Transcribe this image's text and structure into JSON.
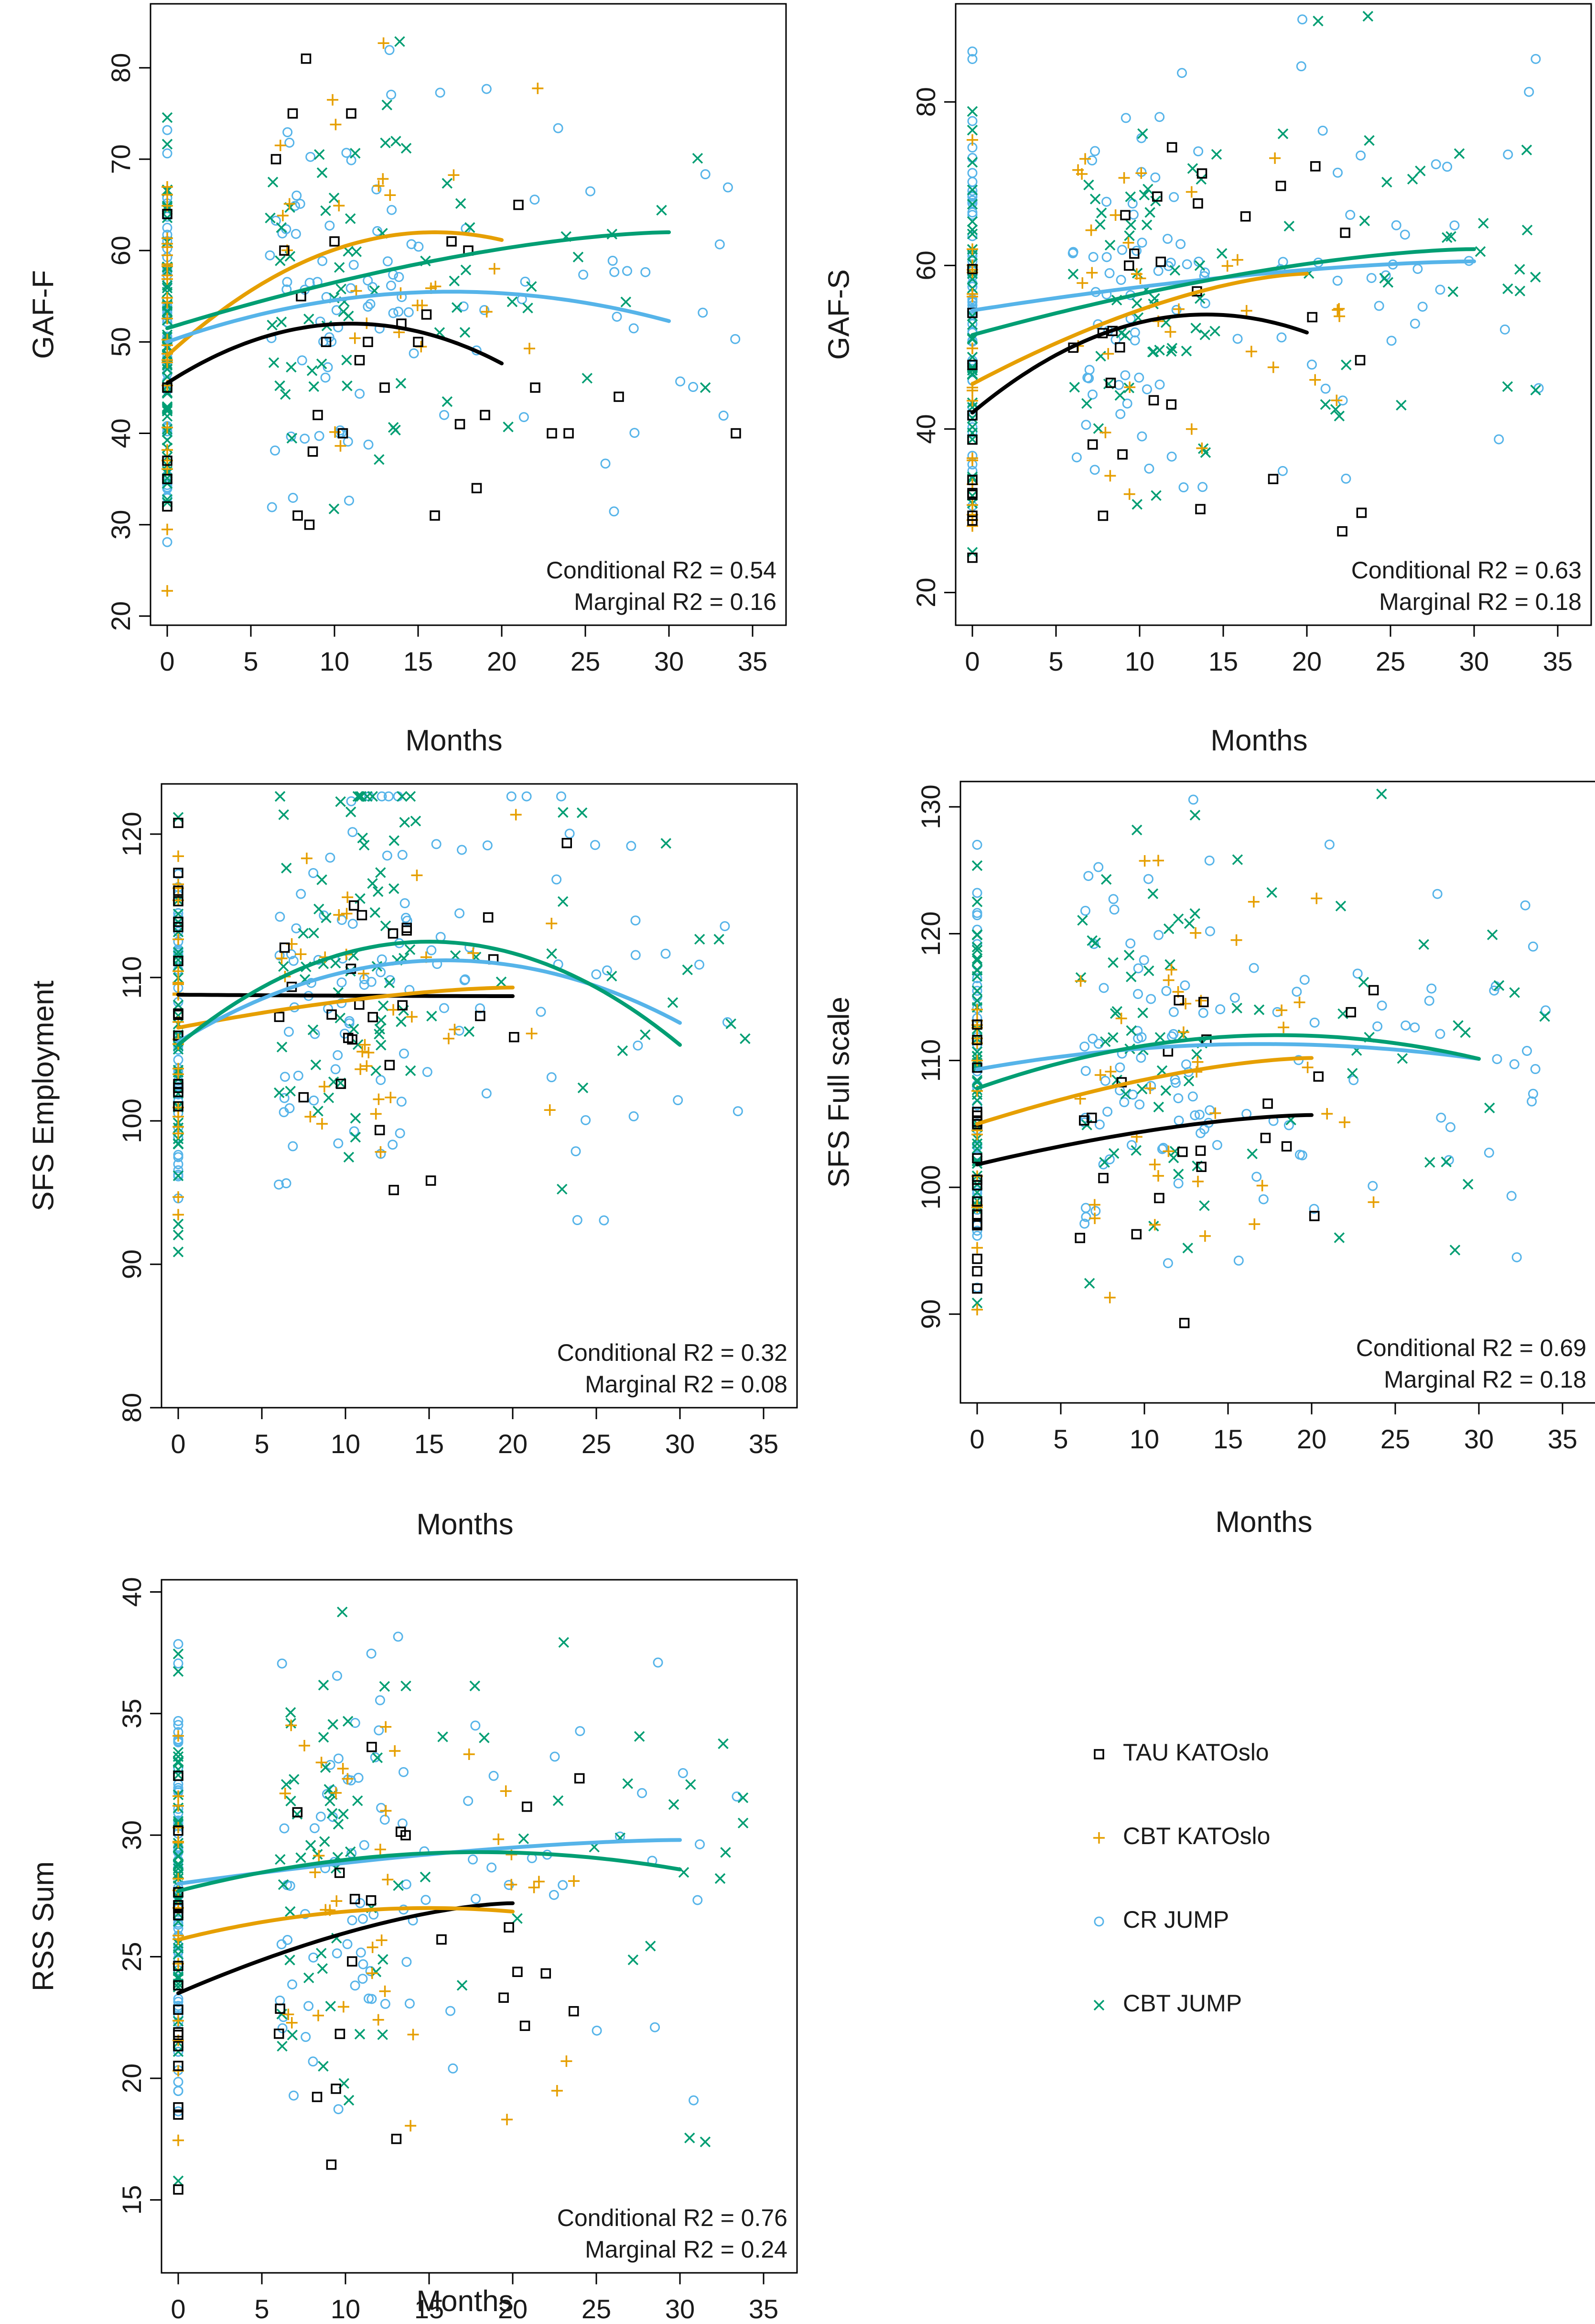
{
  "figure": {
    "legend": [
      {
        "label": "TAU KATOslo",
        "color": "#000000",
        "symbol": "square"
      },
      {
        "label": "CBT KATOslo",
        "color": "#E69F00",
        "symbol": "plus"
      },
      {
        "label": "CR JUMP",
        "color": "#56B4E9",
        "symbol": "circle"
      },
      {
        "label": "CBT JUMP",
        "color": "#009E73",
        "symbol": "cross"
      }
    ]
  },
  "chart_data": [
    {
      "type": "scatter",
      "title": "",
      "xlabel": "Months",
      "ylabel": "GAF-F",
      "xlim": [
        -1,
        37
      ],
      "ylim": [
        19,
        87
      ],
      "xticks": [
        0,
        5,
        10,
        15,
        20,
        25,
        30,
        35
      ],
      "yticks": [
        20,
        30,
        40,
        50,
        60,
        70,
        80
      ],
      "grid": false,
      "annotations": [
        "Conditional R2 = 0.54",
        "Marginal R2 = 0.16"
      ],
      "series": [
        {
          "name": "TAU KATOslo",
          "curve": {
            "x": [
              0,
              20
            ],
            "y0": 45.5,
            "x_peak": 11,
            "y_peak": 52,
            "y_end": 47.5
          },
          "points": [
            [
              0,
              45
            ],
            [
              0,
              64
            ],
            [
              0,
              35
            ],
            [
              0,
              37
            ],
            [
              0,
              32
            ],
            [
              6.5,
              70
            ],
            [
              7,
              60
            ],
            [
              7.5,
              75
            ],
            [
              8,
              55
            ],
            [
              8.3,
              81
            ],
            [
              8.7,
              38
            ],
            [
              9,
              42
            ],
            [
              9.5,
              50
            ],
            [
              10,
              61
            ],
            [
              11,
              75
            ],
            [
              11.5,
              48
            ],
            [
              12,
              50
            ],
            [
              13,
              45
            ],
            [
              14,
              52
            ],
            [
              15,
              50
            ],
            [
              16,
              31
            ],
            [
              17,
              61
            ],
            [
              17.5,
              41
            ],
            [
              18,
              60
            ],
            [
              18.5,
              34
            ],
            [
              19,
              42
            ],
            [
              21,
              65
            ],
            [
              22,
              45
            ],
            [
              23,
              40
            ],
            [
              24,
              40
            ],
            [
              27,
              44
            ],
            [
              34,
              40
            ],
            [
              7.8,
              31
            ],
            [
              8.5,
              30
            ],
            [
              10.5,
              40
            ],
            [
              15.5,
              53
            ]
          ]
        },
        {
          "name": "CBT KATOslo",
          "curve": {
            "x": [
              0,
              20
            ],
            "y0": 48.5,
            "x_peak": 16,
            "y_peak": 62,
            "y_end": 61
          },
          "points": []
        },
        {
          "name": "CR JUMP",
          "curve": {
            "x": [
              0,
              30
            ],
            "y0": 50,
            "x_peak": 17,
            "y_peak": 55.5,
            "y_end": 54
          },
          "points": []
        },
        {
          "name": "CBT JUMP",
          "curve": {
            "x": [
              0,
              30
            ],
            "y0": 51.5,
            "x_peak": 30,
            "y_peak": 62,
            "y_end": 62
          },
          "points": []
        }
      ]
    },
    {
      "type": "scatter",
      "title": "",
      "xlabel": "Months",
      "ylabel": "GAF-S",
      "xlim": [
        -1,
        37
      ],
      "ylim": [
        16,
        92
      ],
      "xticks": [
        0,
        5,
        10,
        15,
        20,
        25,
        30,
        35
      ],
      "yticks": [
        20,
        40,
        60,
        80
      ],
      "grid": false,
      "annotations": [
        "Conditional R2 = 0.63",
        "Marginal R2 = 0.18"
      ],
      "series": [
        {
          "name": "TAU KATOslo",
          "curve": {
            "x": [
              0,
              20
            ],
            "y0": 42,
            "x_peak": 14,
            "y_peak": 54,
            "y_end": 52
          },
          "points": []
        },
        {
          "name": "CBT KATOslo",
          "curve": {
            "x": [
              0,
              20
            ],
            "y0": 45.5,
            "x_peak": 20,
            "y_peak": 59,
            "y_end": 59
          },
          "points": []
        },
        {
          "name": "CR JUMP",
          "curve": {
            "x": [
              0,
              30
            ],
            "y0": 54.5,
            "x_peak": 30,
            "y_peak": 60.5,
            "y_end": 60.5
          },
          "points": []
        },
        {
          "name": "CBT JUMP",
          "curve": {
            "x": [
              0,
              30
            ],
            "y0": 51.5,
            "x_peak": 30,
            "y_peak": 62,
            "y_end": 62
          },
          "points": []
        }
      ]
    },
    {
      "type": "scatter",
      "title": "",
      "xlabel": "Months",
      "ylabel": "SFS Employment",
      "xlim": [
        -1,
        37
      ],
      "ylim": [
        80,
        123.5
      ],
      "xticks": [
        0,
        5,
        10,
        15,
        20,
        25,
        30,
        35
      ],
      "yticks": [
        80,
        90,
        100,
        110,
        120
      ],
      "grid": false,
      "annotations": [
        "Conditional R2 = 0.32",
        "Marginal R2 = 0.08"
      ],
      "series": [
        {
          "name": "TAU KATOslo",
          "curve": {
            "x": [
              0,
              20
            ],
            "y0": 108.8,
            "x_peak": 0,
            "y_peak": 108.8,
            "y_end": 108.7
          },
          "points": []
        },
        {
          "name": "CBT KATOslo",
          "curve": {
            "x": [
              0,
              20
            ],
            "y0": 106.5,
            "x_peak": 20,
            "y_peak": 109.3,
            "y_end": 109.3
          },
          "points": []
        },
        {
          "name": "CR JUMP",
          "curve": {
            "x": [
              0,
              30
            ],
            "y0": 105.5,
            "x_peak": 16,
            "y_peak": 111.2,
            "y_end": 107.5
          },
          "points": []
        },
        {
          "name": "CBT JUMP",
          "curve": {
            "x": [
              0,
              30
            ],
            "y0": 105.3,
            "x_peak": 15,
            "y_peak": 112.5,
            "y_end": 107
          },
          "points": []
        }
      ]
    },
    {
      "type": "scatter",
      "title": "",
      "xlabel": "Months",
      "ylabel": "SFS Full scale",
      "xlim": [
        -1,
        37
      ],
      "ylim": [
        83,
        132
      ],
      "xticks": [
        0,
        5,
        10,
        15,
        20,
        25,
        30,
        35
      ],
      "yticks": [
        90,
        100,
        110,
        120,
        130
      ],
      "grid": false,
      "annotations": [
        "Conditional R2 = 0.69",
        "Marginal R2 = 0.18"
      ],
      "series": [
        {
          "name": "TAU KATOslo",
          "curve": {
            "x": [
              0,
              20
            ],
            "y0": 101.8,
            "x_peak": 20,
            "y_peak": 105.7,
            "y_end": 105.7
          },
          "points": []
        },
        {
          "name": "CBT KATOslo",
          "curve": {
            "x": [
              0,
              20
            ],
            "y0": 105,
            "x_peak": 20,
            "y_peak": 110.2,
            "y_end": 110.2
          },
          "points": []
        },
        {
          "name": "CR JUMP",
          "curve": {
            "x": [
              0,
              30
            ],
            "y0": 109.3,
            "x_peak": 17,
            "y_peak": 111.3,
            "y_end": 110.5
          },
          "points": []
        },
        {
          "name": "CBT JUMP",
          "curve": {
            "x": [
              0,
              30
            ],
            "y0": 107.8,
            "x_peak": 18,
            "y_peak": 112,
            "y_end": 111
          },
          "points": []
        }
      ]
    },
    {
      "type": "scatter",
      "title": "",
      "xlabel": "Months",
      "ylabel": "RSS Sum",
      "xlim": [
        -1,
        37
      ],
      "ylim": [
        12,
        40.5
      ],
      "xticks": [
        0,
        5,
        10,
        15,
        20,
        25,
        30,
        35
      ],
      "yticks": [
        15,
        20,
        25,
        30,
        35,
        40
      ],
      "grid": false,
      "annotations": [
        "Conditional R2 = 0.76",
        "Marginal R2 = 0.24"
      ],
      "series": [
        {
          "name": "TAU KATOslo",
          "curve": {
            "x": [
              0,
              20
            ],
            "y0": 23.5,
            "x_peak": 20,
            "y_peak": 27.2,
            "y_end": 27.2
          },
          "points": []
        },
        {
          "name": "CBT KATOslo",
          "curve": {
            "x": [
              0,
              20
            ],
            "y0": 25.7,
            "x_peak": 15,
            "y_peak": 27,
            "y_end": 26.7
          },
          "points": []
        },
        {
          "name": "CR JUMP",
          "curve": {
            "x": [
              0,
              30
            ],
            "y0": 28,
            "x_peak": 30,
            "y_peak": 29.8,
            "y_end": 29.8
          },
          "points": []
        },
        {
          "name": "CBT JUMP",
          "curve": {
            "x": [
              0,
              30
            ],
            "y0": 27.7,
            "x_peak": 18,
            "y_peak": 29.3,
            "y_end": 28.3
          },
          "points": []
        }
      ]
    }
  ]
}
